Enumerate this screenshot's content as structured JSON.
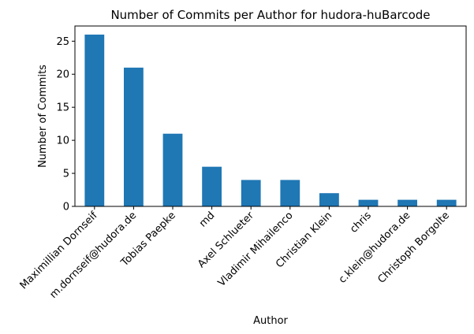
{
  "chart_data": {
    "type": "bar",
    "title": "Number of Commits per Author for hudora-huBarcode",
    "xlabel": "Author",
    "ylabel": "Number of Commits",
    "categories": [
      "Maximillian Dornseif",
      "m.dornseif@hudora.de",
      "Tobias Paepke",
      "md",
      "Axel Schlueter",
      "Vladimir Mihailenco",
      "Christian Klein",
      "chris",
      "c.klein@hudora.de",
      "Christoph Borgolte"
    ],
    "values": [
      26,
      21,
      11,
      6,
      4,
      4,
      2,
      1,
      1,
      1
    ],
    "yticks": [
      0,
      5,
      10,
      15,
      20,
      25
    ],
    "ylim": [
      0,
      27.3
    ],
    "bar_color": "#1f77b4",
    "grid": false,
    "legend": "none"
  }
}
